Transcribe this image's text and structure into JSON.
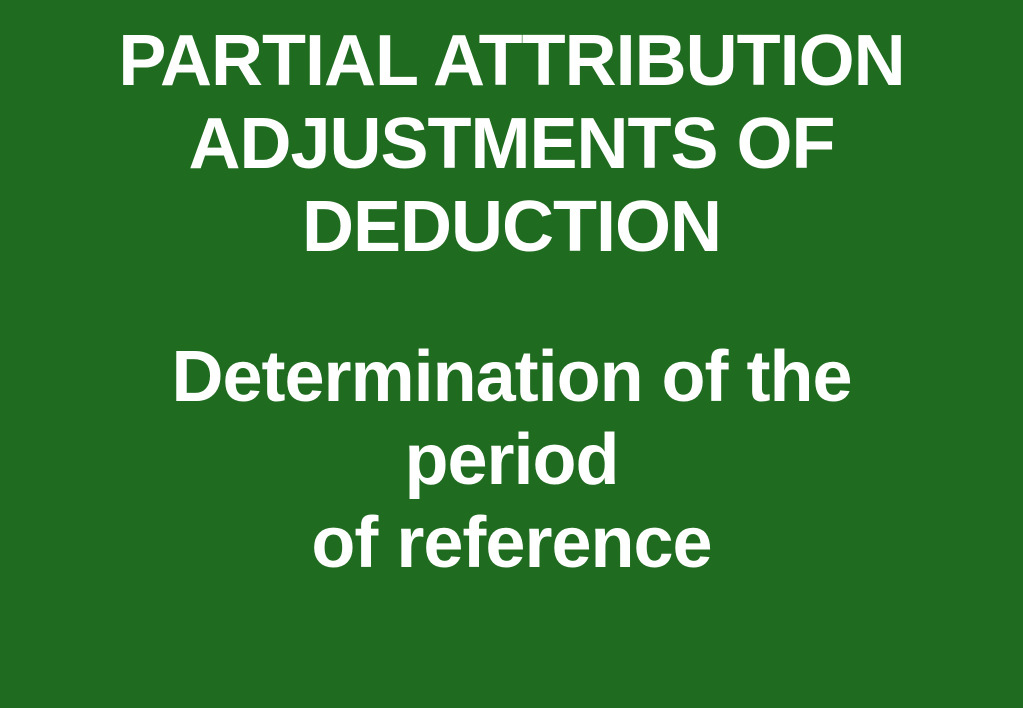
{
  "slide": {
    "background_color": "#1f6b1f",
    "text_color": "#ffffff",
    "title": {
      "line1": "PARTIAL ATTRIBUTION",
      "line2": "ADJUSTMENTS OF",
      "line3": "DEDUCTION",
      "font_size": 72,
      "font_weight": "bold"
    },
    "subtitle": {
      "line1": "Determination of the",
      "line2": "period",
      "line3": "of reference",
      "font_size": 72,
      "font_weight": "bold"
    }
  }
}
